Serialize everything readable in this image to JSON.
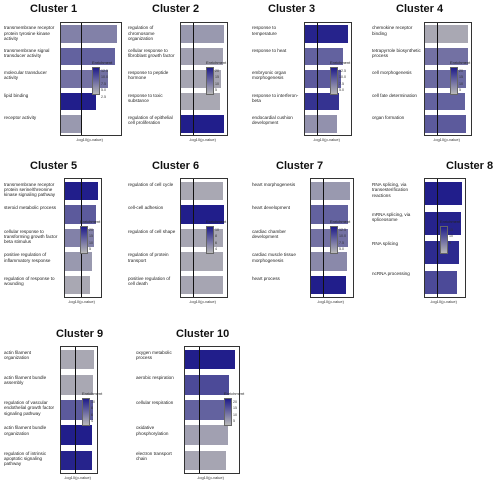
{
  "colors": {
    "low": "#b8b8b8",
    "high": "#1e1b8a",
    "axis": "#333333"
  },
  "chart_data": [
    {
      "type": "bar",
      "title": "Cluster 1",
      "xlabel": "-log10(p-value)",
      "legend_title": "Enrichment",
      "legend_ticks": [
        "12.5",
        "10.0",
        "7.5",
        "5.0",
        "2.5"
      ],
      "categories": [
        "transmembrane receptor protein tyrosine kinase activity",
        "transmembrane signal transducer activity",
        "molecular transducer activity",
        "lipid binding",
        "receptor activity"
      ],
      "values": [
        4.2,
        4.0,
        3.5,
        2.6,
        1.6
      ],
      "colorvals": [
        0.35,
        0.55,
        0.45,
        0.98,
        0.2
      ]
    },
    {
      "type": "bar",
      "title": "Cluster 2",
      "xlabel": "-log10(p-value)",
      "legend_title": "Enrichment",
      "legend_ticks": [
        "20",
        "15",
        "10",
        "5"
      ],
      "categories": [
        "regulation of chromosome organization",
        "cellular response to fibroblast growth factor",
        "response to peptide hormone",
        "response to toxic substance",
        "regulation of epithelial cell proliferation"
      ],
      "values": [
        3.5,
        3.4,
        3.3,
        3.2,
        3.5
      ],
      "colorvals": [
        0.2,
        0.15,
        0.12,
        0.1,
        0.98
      ]
    },
    {
      "type": "bar",
      "title": "Cluster 3",
      "xlabel": "-log10(p-value)",
      "legend_title": "Enrichment",
      "legend_ticks": [
        "12.5",
        "10.0",
        "7.5",
        "5.0"
      ],
      "categories": [
        "response to temperature",
        "response to heat",
        "embryonic organ morphogenesis",
        "response to interferon-beta",
        "endocardial cushion development"
      ],
      "values": [
        4.3,
        3.8,
        3.6,
        3.4,
        3.2
      ],
      "colorvals": [
        0.95,
        0.55,
        0.6,
        0.85,
        0.25
      ]
    },
    {
      "type": "bar",
      "title": "Cluster 4",
      "xlabel": "-log10(p-value)",
      "legend_title": "Enrichment",
      "legend_ticks": [
        "20",
        "15",
        "10",
        "5"
      ],
      "categories": [
        "chemokine receptor binding",
        "tetrapyrrole biosynthetic process",
        "cell morphogenesis",
        "cell fate determination",
        "organ formation"
      ],
      "values": [
        3.0,
        3.0,
        2.9,
        2.8,
        2.9
      ],
      "colorvals": [
        0.1,
        0.45,
        0.5,
        0.55,
        0.6
      ]
    },
    {
      "type": "bar",
      "title": "Cluster 5",
      "xlabel": "-log10(p-value)",
      "legend_title": "Enrichment",
      "legend_ticks": [
        "20",
        "15",
        "10",
        "5"
      ],
      "categories": [
        "transmembrane receptor protein serine/threonine kinase signaling pathway",
        "steroid metabolic process",
        "cellular response to transforming growth factor beta stimulus",
        "positive regulation of inflammatory response",
        "regulation of response to wounding"
      ],
      "values": [
        3.6,
        3.3,
        3.1,
        2.9,
        2.7
      ],
      "colorvals": [
        0.98,
        0.6,
        0.35,
        0.2,
        0.1
      ]
    },
    {
      "type": "bar",
      "title": "Cluster 6",
      "xlabel": "-log10(p-value)",
      "legend_title": "Enrichment",
      "legend_ticks": [
        "10",
        "8",
        "6",
        "4"
      ],
      "categories": [
        "regulation of cell cycle",
        "cell-cell adhesion",
        "regulation of cell shape",
        "regulation of protein transport",
        "positive regulation of cell death"
      ],
      "values": [
        3.5,
        3.6,
        3.5,
        3.5,
        3.5
      ],
      "colorvals": [
        0.1,
        0.98,
        0.12,
        0.1,
        0.12
      ]
    },
    {
      "type": "bar",
      "title": "Cluster 7",
      "xlabel": "-log10(p-value)",
      "legend_title": "Enrichment",
      "legend_ticks": [
        "12.5",
        "10.0",
        "7.5",
        "5.0"
      ],
      "categories": [
        "heart morphogenesis",
        "heart development",
        "cardiac chamber development",
        "cardiac muscle tissue morphogenesis",
        "heart process"
      ],
      "values": [
        4.8,
        4.6,
        4.5,
        4.4,
        4.3
      ],
      "colorvals": [
        0.2,
        0.55,
        0.45,
        0.3,
        0.98
      ]
    },
    {
      "type": "bar",
      "title": "Cluster 8",
      "xlabel": "-log10(p-value)",
      "legend_title": "Enrichment",
      "legend_ticks": [
        "15",
        "10",
        "5"
      ],
      "categories": [
        "RNA splicing, via transesterification reactions",
        "mRNA splicing, via spliceosome",
        "RNA splicing",
        "ncRNA processing"
      ],
      "values": [
        4.2,
        4.1,
        3.9,
        3.6
      ],
      "colorvals": [
        0.98,
        0.95,
        0.9,
        0.7
      ]
    },
    {
      "type": "bar",
      "title": "Cluster 9",
      "xlabel": "-log10(p-value)",
      "legend_title": "Enrichment",
      "legend_ticks": [
        "10",
        "8",
        "6",
        "4"
      ],
      "categories": [
        "actin filament organization",
        "actin filament bundle assembly",
        "regulation of vascular endothelial growth factor signaling pathway",
        "actin filament bundle organization",
        "regulation of intrinsic apoptotic signaling pathway"
      ],
      "values": [
        3.6,
        3.5,
        3.5,
        3.4,
        3.3
      ],
      "colorvals": [
        0.1,
        0.1,
        0.6,
        0.98,
        0.95
      ]
    },
    {
      "type": "bar",
      "title": "Cluster 10",
      "xlabel": "-log10(p-value)",
      "legend_title": "Enrichment",
      "legend_ticks": [
        "20",
        "15",
        "10",
        "5"
      ],
      "categories": [
        "oxygen metabolic process",
        "aerobic respiration",
        "cellular respiration",
        "oxidative phosphorylation",
        "electron transport chain"
      ],
      "values": [
        3.9,
        3.4,
        3.3,
        3.3,
        3.2
      ],
      "colorvals": [
        0.98,
        0.7,
        0.55,
        0.15,
        0.12
      ]
    }
  ]
}
